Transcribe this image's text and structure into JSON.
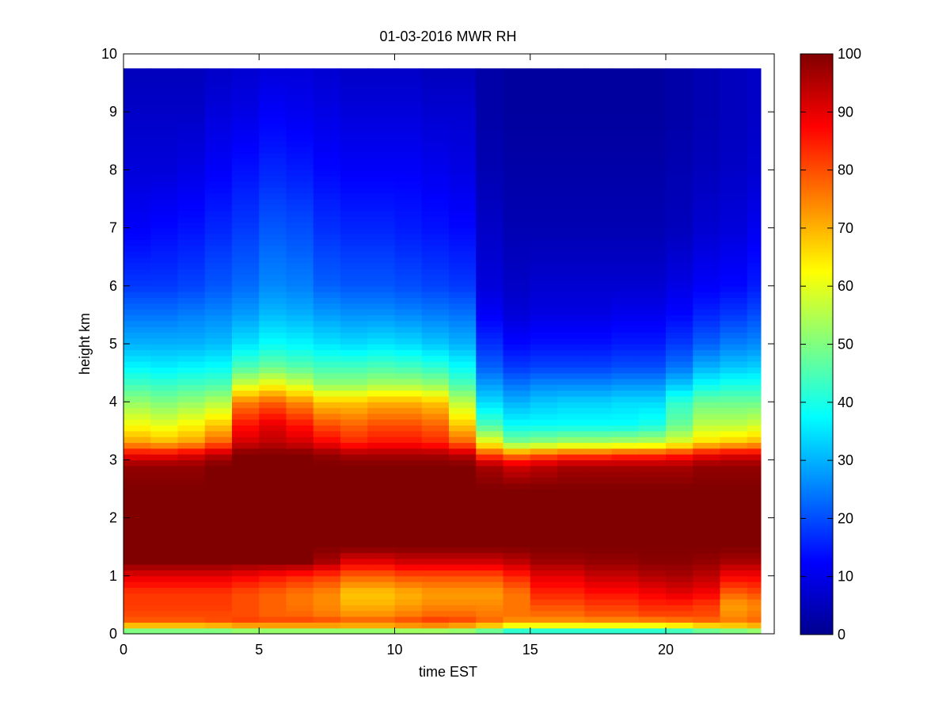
{
  "chart_data": {
    "type": "heatmap",
    "title": "01-03-2016 MWR RH",
    "xlabel": "time EST",
    "ylabel": "height km",
    "xlim": [
      0,
      24
    ],
    "ylim": [
      0,
      10
    ],
    "xticks": [
      "0",
      "5",
      "10",
      "15",
      "20"
    ],
    "yticks": [
      "0",
      "1",
      "2",
      "3",
      "4",
      "5",
      "6",
      "7",
      "8",
      "9",
      "10"
    ],
    "colorbar": {
      "colormap": "jet",
      "range": [
        0,
        100
      ],
      "ticks": [
        "0",
        "10",
        "20",
        "30",
        "40",
        "50",
        "60",
        "70",
        "80",
        "90",
        "100"
      ]
    },
    "time_centers": [
      0.5,
      1.5,
      2.5,
      3.5,
      4.5,
      5.5,
      6.5,
      7.5,
      8.5,
      9.5,
      10.5,
      11.5,
      12.5,
      13.5,
      14.5,
      15.5,
      16.5,
      17.5,
      18.5,
      19.5,
      20.5,
      21.5,
      22.5,
      23.5
    ],
    "heights_km": [
      0,
      0.1,
      0.2,
      0.3,
      0.5,
      0.7,
      1.0,
      1.25,
      1.5,
      2.0,
      2.5,
      2.9,
      3.1,
      3.3,
      3.6,
      4.0,
      4.3,
      4.6,
      5.0,
      5.5,
      6.0,
      7.0,
      8.0,
      9.0,
      9.75
    ],
    "rh_profiles": [
      {
        "time": 0.5,
        "rh": [
          40,
          60,
          78,
          80,
          82,
          82,
          90,
          100,
          100,
          100,
          100,
          98,
          88,
          72,
          62,
          52,
          44,
          37,
          30,
          24,
          18,
          12,
          9,
          7,
          6
        ]
      },
      {
        "time": 1.5,
        "rh": [
          40,
          60,
          78,
          80,
          82,
          82,
          90,
          100,
          100,
          100,
          100,
          98,
          88,
          70,
          60,
          50,
          43,
          36,
          30,
          24,
          18,
          13,
          9,
          7,
          6
        ]
      },
      {
        "time": 2.5,
        "rh": [
          40,
          60,
          78,
          80,
          82,
          82,
          90,
          100,
          100,
          100,
          100,
          98,
          90,
          72,
          63,
          52,
          44,
          37,
          30,
          25,
          19,
          14,
          10,
          7,
          6
        ]
      },
      {
        "time": 3.5,
        "rh": [
          40,
          60,
          80,
          80,
          82,
          82,
          90,
          100,
          100,
          100,
          100,
          100,
          94,
          78,
          68,
          55,
          45,
          38,
          31,
          26,
          21,
          16,
          12,
          9,
          7
        ]
      },
      {
        "time": 4.5,
        "rh": [
          42,
          62,
          82,
          80,
          80,
          80,
          88,
          100,
          100,
          100,
          100,
          100,
          100,
          92,
          86,
          75,
          58,
          45,
          35,
          28,
          23,
          18,
          14,
          10,
          8
        ]
      },
      {
        "time": 5.5,
        "rh": [
          42,
          62,
          82,
          78,
          78,
          78,
          86,
          100,
          100,
          100,
          100,
          100,
          100,
          94,
          90,
          78,
          62,
          48,
          38,
          31,
          26,
          21,
          16,
          12,
          9
        ]
      },
      {
        "time": 6.5,
        "rh": [
          42,
          62,
          82,
          78,
          76,
          76,
          84,
          100,
          100,
          100,
          100,
          100,
          100,
          92,
          86,
          74,
          58,
          46,
          37,
          30,
          25,
          20,
          15,
          11,
          9
        ]
      },
      {
        "time": 7.5,
        "rh": [
          42,
          62,
          82,
          76,
          74,
          74,
          82,
          96,
          100,
          100,
          100,
          100,
          98,
          88,
          80,
          68,
          52,
          44,
          35,
          28,
          22,
          17,
          13,
          10,
          8
        ]
      },
      {
        "time": 8.5,
        "rh": [
          42,
          62,
          80,
          74,
          70,
          68,
          78,
          90,
          100,
          100,
          100,
          100,
          96,
          84,
          78,
          68,
          52,
          44,
          34,
          27,
          21,
          16,
          12,
          9,
          7
        ]
      },
      {
        "time": 9.5,
        "rh": [
          42,
          62,
          80,
          74,
          70,
          68,
          78,
          90,
          100,
          100,
          100,
          100,
          96,
          86,
          80,
          70,
          54,
          45,
          35,
          27,
          21,
          16,
          12,
          9,
          7
        ]
      },
      {
        "time": 10.5,
        "rh": [
          42,
          64,
          82,
          76,
          72,
          70,
          80,
          92,
          100,
          100,
          100,
          100,
          96,
          86,
          80,
          70,
          54,
          44,
          34,
          26,
          20,
          15,
          12,
          9,
          7
        ]
      },
      {
        "time": 11.5,
        "rh": [
          42,
          64,
          84,
          78,
          74,
          72,
          80,
          92,
          100,
          100,
          100,
          100,
          96,
          84,
          78,
          68,
          52,
          42,
          32,
          25,
          19,
          14,
          11,
          8,
          6
        ]
      },
      {
        "time": 12.5,
        "rh": [
          42,
          62,
          82,
          78,
          74,
          72,
          80,
          92,
          100,
          100,
          100,
          100,
          94,
          78,
          68,
          56,
          45,
          38,
          30,
          24,
          18,
          13,
          10,
          8,
          6
        ]
      },
      {
        "time": 13.5,
        "rh": [
          38,
          58,
          78,
          76,
          74,
          72,
          80,
          92,
          100,
          100,
          100,
          96,
          80,
          62,
          45,
          34,
          28,
          22,
          17,
          12,
          9,
          7,
          5,
          4,
          4
        ]
      },
      {
        "time": 14.5,
        "rh": [
          32,
          52,
          72,
          76,
          76,
          76,
          84,
          94,
          100,
          100,
          100,
          92,
          75,
          50,
          38,
          30,
          24,
          18,
          13,
          9,
          7,
          5,
          4,
          3,
          3
        ]
      },
      {
        "time": 15.5,
        "rh": [
          32,
          52,
          72,
          76,
          80,
          84,
          90,
          97,
          100,
          100,
          100,
          94,
          78,
          52,
          38,
          32,
          26,
          19,
          14,
          10,
          8,
          5,
          4,
          3,
          3
        ]
      },
      {
        "time": 16.5,
        "rh": [
          32,
          52,
          72,
          76,
          80,
          84,
          90,
          97,
          100,
          100,
          100,
          96,
          80,
          54,
          38,
          33,
          26,
          19,
          14,
          10,
          8,
          5,
          4,
          3,
          3
        ]
      },
      {
        "time": 17.5,
        "rh": [
          32,
          52,
          72,
          78,
          82,
          86,
          93,
          98,
          100,
          100,
          100,
          96,
          80,
          54,
          38,
          33,
          26,
          19,
          14,
          10,
          8,
          5,
          4,
          3,
          3
        ]
      },
      {
        "time": 18.5,
        "rh": [
          32,
          52,
          72,
          78,
          82,
          86,
          93,
          98,
          100,
          100,
          100,
          96,
          82,
          55,
          38,
          34,
          27,
          20,
          15,
          11,
          8,
          5,
          4,
          3,
          3
        ]
      },
      {
        "time": 19.5,
        "rh": [
          32,
          52,
          72,
          80,
          84,
          88,
          95,
          99,
          100,
          100,
          100,
          96,
          82,
          56,
          40,
          34,
          27,
          20,
          15,
          11,
          8,
          5,
          4,
          3,
          3
        ]
      },
      {
        "time": 20.5,
        "rh": [
          34,
          54,
          74,
          80,
          84,
          90,
          96,
          99,
          100,
          100,
          100,
          96,
          84,
          60,
          48,
          42,
          32,
          24,
          18,
          13,
          10,
          6,
          5,
          4,
          4
        ]
      },
      {
        "time": 21.5,
        "rh": [
          38,
          58,
          76,
          80,
          82,
          88,
          94,
          98,
          100,
          100,
          100,
          98,
          88,
          66,
          56,
          48,
          38,
          30,
          22,
          16,
          12,
          8,
          6,
          5,
          5
        ]
      },
      {
        "time": 22.5,
        "rh": [
          40,
          60,
          76,
          74,
          72,
          78,
          88,
          96,
          100,
          100,
          100,
          98,
          90,
          68,
          56,
          48,
          40,
          32,
          25,
          18,
          13,
          9,
          7,
          6,
          6
        ]
      },
      {
        "time": 23.5,
        "rh": [
          42,
          62,
          78,
          76,
          74,
          80,
          88,
          96,
          100,
          100,
          100,
          98,
          90,
          70,
          58,
          48,
          40,
          33,
          26,
          20,
          15,
          11,
          8,
          7,
          7
        ]
      }
    ]
  }
}
